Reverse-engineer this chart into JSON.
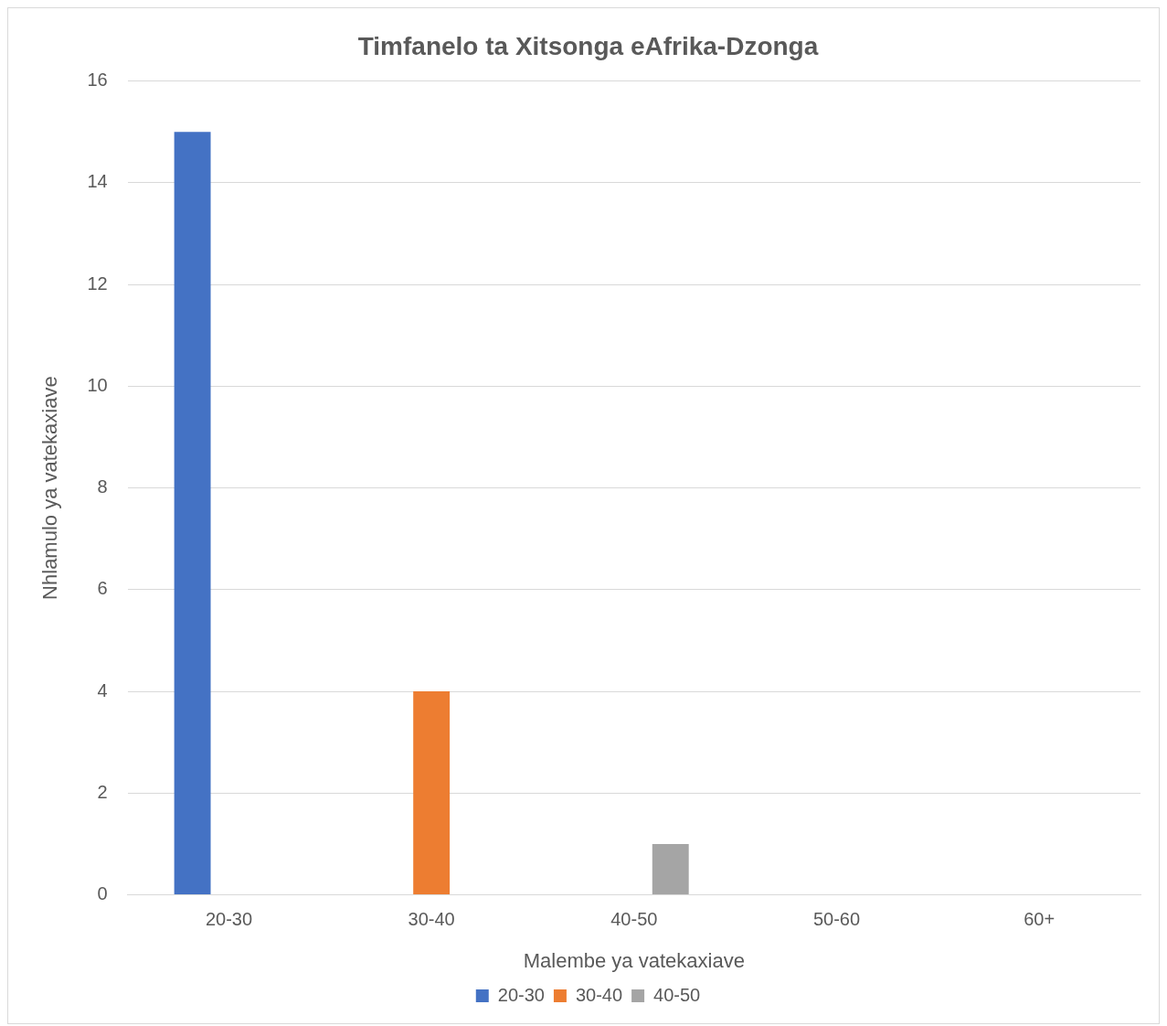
{
  "chart_data": {
    "type": "bar",
    "title": "Timfanelo ta Xitsonga eAfrika-Dzonga",
    "xlabel": "Malembe ya vatekaxiave",
    "ylabel": "Nhlamulo ya vatekaxiave",
    "categories": [
      "20-30",
      "30-40",
      "40-50",
      "50-60",
      "60+"
    ],
    "series": [
      {
        "name": "20-30",
        "color": "#4472c4",
        "values": [
          15,
          null,
          null,
          null,
          null
        ]
      },
      {
        "name": "30-40",
        "color": "#ed7d31",
        "values": [
          null,
          4,
          null,
          null,
          null
        ]
      },
      {
        "name": "40-50",
        "color": "#a5a5a5",
        "values": [
          null,
          null,
          1,
          null,
          null
        ]
      }
    ],
    "ylim": [
      0,
      16
    ],
    "yticks": [
      0,
      2,
      4,
      6,
      8,
      10,
      12,
      14,
      16
    ],
    "grid": "y",
    "legend": "bottom"
  }
}
